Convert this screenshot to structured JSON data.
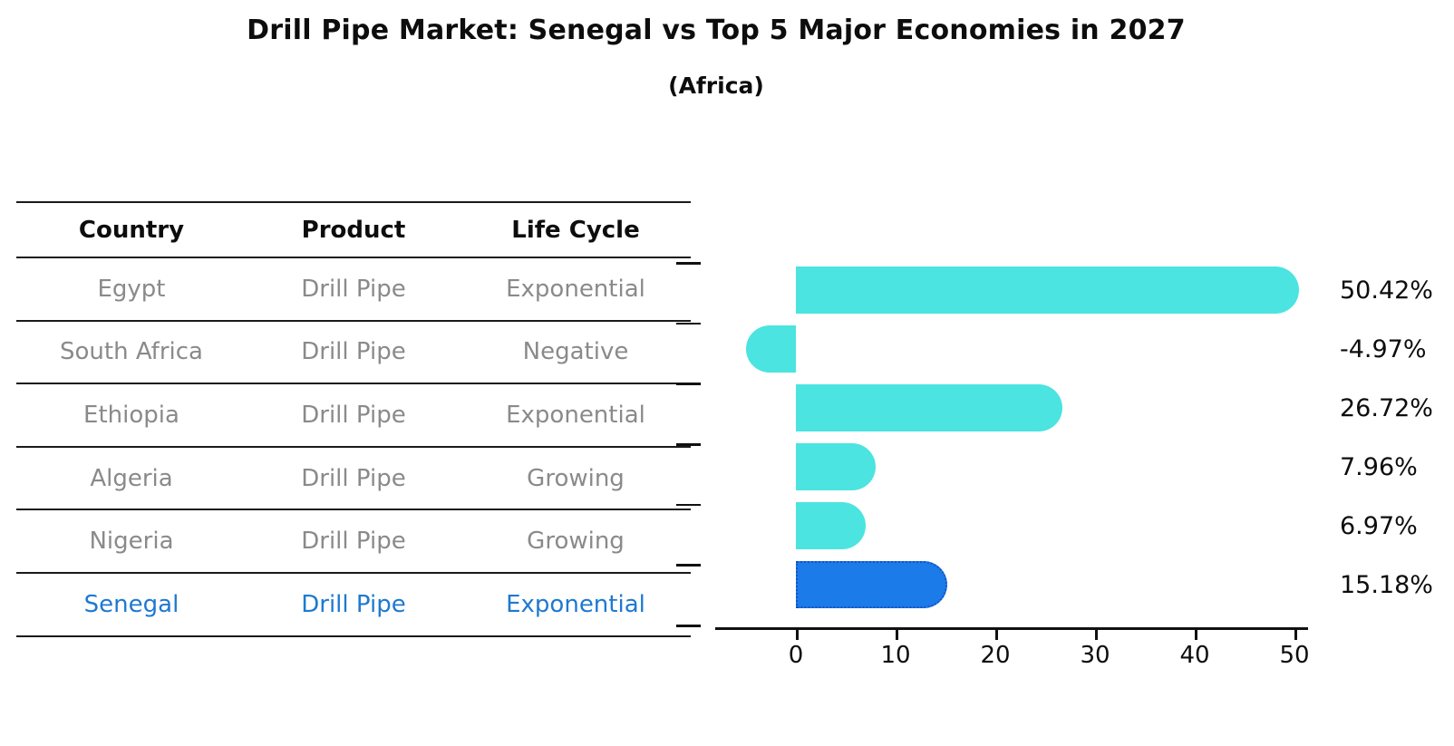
{
  "title": "Drill Pipe Market: Senegal vs Top 5 Major Economies in 2027",
  "subtitle": "(Africa)",
  "table": {
    "headers": [
      "Country",
      "Product",
      "Life Cycle"
    ],
    "rows": [
      {
        "country": "Egypt",
        "product": "Drill Pipe",
        "life_cycle": "Exponential",
        "highlight": false
      },
      {
        "country": "South Africa",
        "product": "Drill Pipe",
        "life_cycle": "Negative",
        "highlight": false
      },
      {
        "country": "Ethiopia",
        "product": "Drill Pipe",
        "life_cycle": "Exponential",
        "highlight": false
      },
      {
        "country": "Algeria",
        "product": "Drill Pipe",
        "life_cycle": "Growing",
        "highlight": false
      },
      {
        "country": "Nigeria",
        "product": "Drill Pipe",
        "life_cycle": "Growing",
        "highlight": false
      },
      {
        "country": "Senegal",
        "product": "Drill Pipe",
        "life_cycle": "Exponential",
        "highlight": true
      }
    ]
  },
  "chart_data": {
    "type": "bar",
    "orientation": "horizontal",
    "categories": [
      "Egypt",
      "South Africa",
      "Ethiopia",
      "Algeria",
      "Nigeria",
      "Senegal"
    ],
    "values": [
      50.42,
      -4.97,
      26.72,
      7.96,
      6.97,
      15.18
    ],
    "bar_labels": [
      "50.42%",
      "-4.97%",
      "26.72%",
      "7.96%",
      "6.97%",
      "15.18%"
    ],
    "xticks": [
      0,
      10,
      20,
      30,
      40,
      50
    ],
    "xtick_labels": [
      "0",
      "10",
      "20",
      "30",
      "40",
      "50"
    ],
    "xlim": [
      -8,
      51.5
    ],
    "grid": false,
    "legend": "none",
    "highlight_index": 5,
    "bar_color": "#4be4e0",
    "highlight_color": "#1b7be8",
    "highlight_border_color": "#1850c8",
    "highlight_border_style": "dotted"
  },
  "colors": {
    "title_text": "#0d0d0d",
    "table_text_muted": "#8a8a8a",
    "highlight_text": "#1e79d0",
    "axis": "#111111",
    "background": "#ffffff"
  }
}
